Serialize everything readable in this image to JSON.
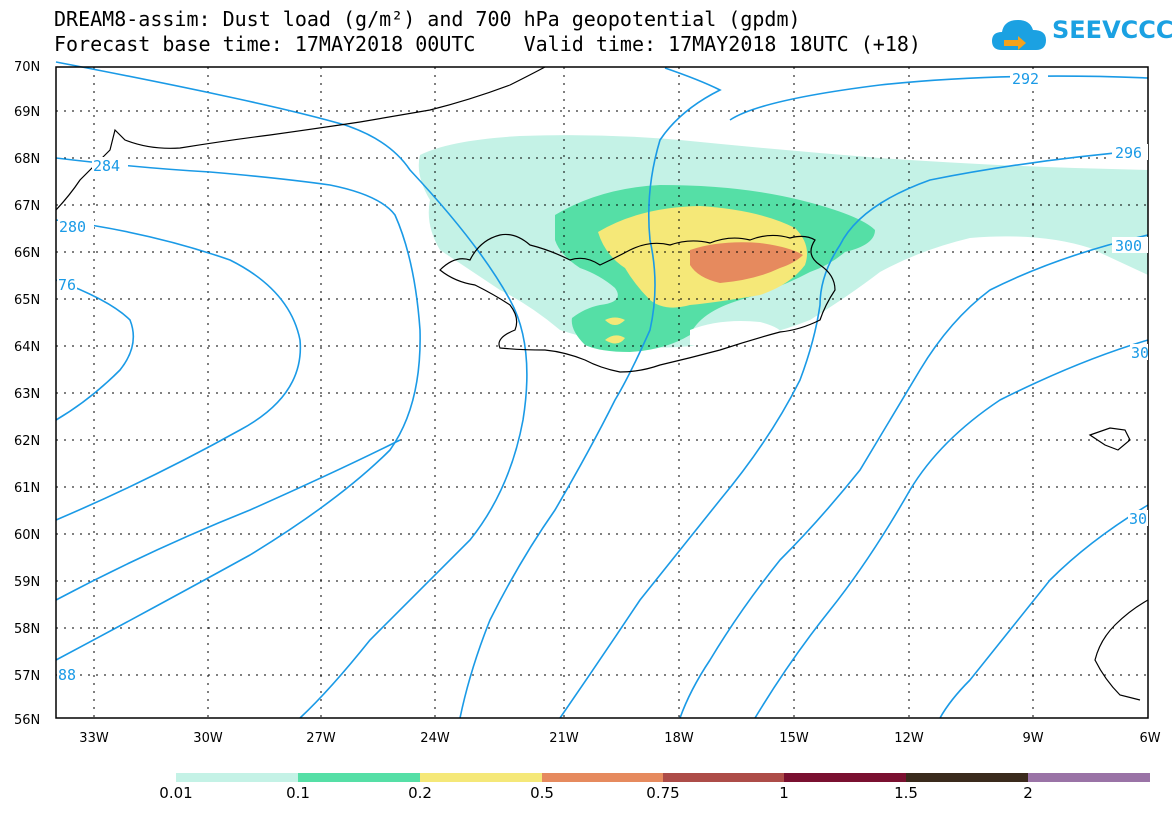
{
  "title": {
    "line1": "DREAM8-assim: Dust load (g/m²) and 700 hPa geopotential (gpdm)",
    "line2": "Forecast base time: 17MAY2018 00UTC    Valid time: 17MAY2018 18UTC (+18)"
  },
  "logo": {
    "text": "SEEVCCC",
    "icon": "cloud-icon",
    "color": "#1ba1e2"
  },
  "map": {
    "lat_labels": [
      "70N",
      "69N",
      "68N",
      "67N",
      "66N",
      "65N",
      "64N",
      "63N",
      "62N",
      "61N",
      "60N",
      "59N",
      "58N",
      "57N",
      "56N"
    ],
    "lon_labels": [
      "33W",
      "30W",
      "27W",
      "24W",
      "21W",
      "18W",
      "15W",
      "12W",
      "9W",
      "6W"
    ],
    "contour_labels": [
      "292",
      "296",
      "300",
      "30",
      "30",
      "284",
      "280",
      "76",
      "88"
    ],
    "contour_color": "#1a9ae6",
    "coastline_color": "#000000",
    "gridline_style": "dotted"
  },
  "colorbar": {
    "labels": [
      "0.01",
      "0.1",
      "0.2",
      "0.5",
      "0.75",
      "1",
      "1.5",
      "2"
    ],
    "colors": [
      "#c4f2e6",
      "#55dfa6",
      "#f5e878",
      "#e68a5e",
      "#ad4c48",
      "#7a1030",
      "#3a2a1c",
      "#9a73a6"
    ]
  }
}
